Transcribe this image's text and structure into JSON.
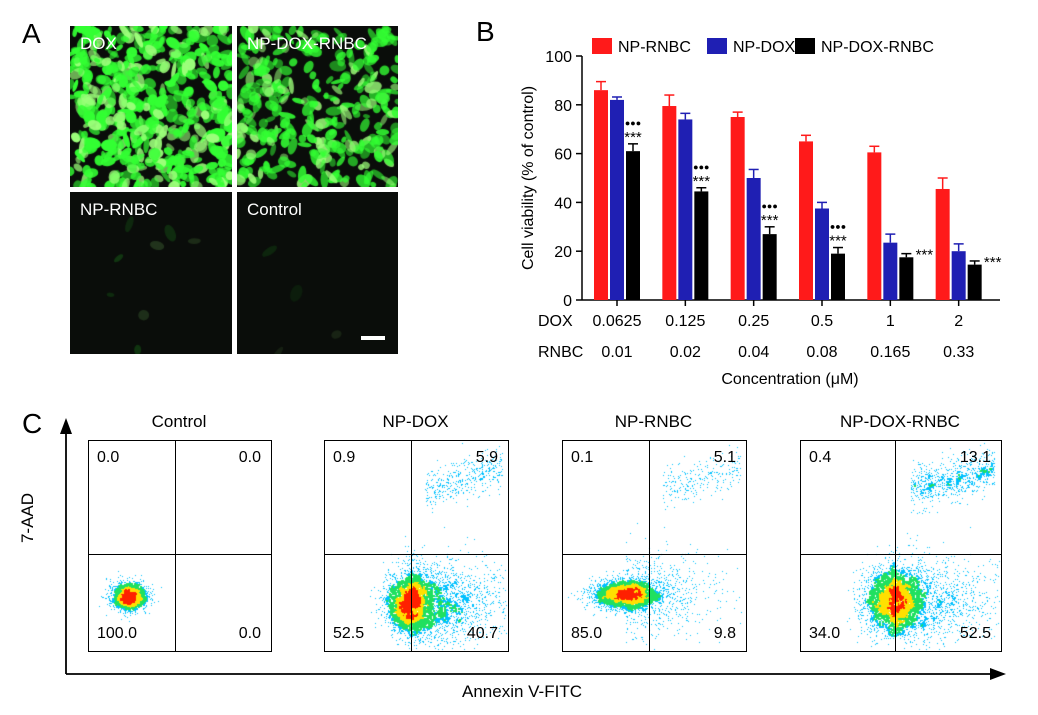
{
  "panels": {
    "a": "A",
    "b": "B",
    "c": "C"
  },
  "micrographs": {
    "tl": "DOX",
    "tr": "NP-DOX-RNBC",
    "bl": "NP-RNBC",
    "br": "Control",
    "fluorescence_color": "#33ff33"
  },
  "chart_data": {
    "type": "bar",
    "ylabel": "Cell viability (% of control)",
    "xlabel": "Concentration (μM)",
    "ylim": [
      0,
      100
    ],
    "yticks": [
      0,
      20,
      40,
      60,
      80,
      100
    ],
    "grid": false,
    "legend_position": "top",
    "row_labels": {
      "dox": "DOX",
      "rnbc": "RNBC"
    },
    "categories_dox": [
      "0.0625",
      "0.125",
      "0.25",
      "0.5",
      "1",
      "2"
    ],
    "categories_rnbc": [
      "0.01",
      "0.02",
      "0.04",
      "0.08",
      "0.165",
      "0.33"
    ],
    "series": [
      {
        "name": "NP-RNBC",
        "color": "#ff1a1a",
        "values": [
          86,
          79.5,
          75,
          65,
          60.5,
          45.5
        ],
        "errors": [
          3.5,
          4.5,
          2,
          2.5,
          2.5,
          4.5
        ]
      },
      {
        "name": "NP-DOX",
        "color": "#1f1fb3",
        "values": [
          82,
          74,
          50,
          37.5,
          23.5,
          20
        ],
        "errors": [
          1.2,
          2.5,
          3.5,
          2.5,
          3.5,
          3
        ]
      },
      {
        "name": "NP-DOX-RNBC",
        "color": "#000000",
        "values": [
          61,
          44.5,
          27,
          19,
          17.5,
          14.5
        ],
        "errors": [
          3,
          1.5,
          3,
          2.5,
          1.5,
          1.5
        ]
      }
    ],
    "annotations": [
      {
        "category": 0,
        "dots": "●●●",
        "stars": "***"
      },
      {
        "category": 1,
        "dots": "●●●",
        "stars": "***"
      },
      {
        "category": 2,
        "dots": "●●●",
        "stars": "***"
      },
      {
        "category": 3,
        "dots": "●●●",
        "stars": "***"
      },
      {
        "category": 4,
        "dots": "",
        "stars": "***"
      },
      {
        "category": 5,
        "dots": "",
        "stars": "***"
      }
    ]
  },
  "flow": {
    "y_axis_label": "7-AAD",
    "x_axis_label": "Annexin V-FITC",
    "plots": [
      {
        "title": "Control",
        "ul": "0.0",
        "ur": "0.0",
        "ll": "100.0",
        "lr": "0.0"
      },
      {
        "title": "NP-DOX",
        "ul": "0.9",
        "ur": "5.9",
        "ll": "52.5",
        "lr": "40.7"
      },
      {
        "title": "NP-RNBC",
        "ul": "0.1",
        "ur": "5.1",
        "ll": "85.0",
        "lr": "9.8"
      },
      {
        "title": "NP-DOX-RNBC",
        "ul": "0.4",
        "ur": "13.1",
        "ll": "34.0",
        "lr": "52.5"
      }
    ]
  }
}
